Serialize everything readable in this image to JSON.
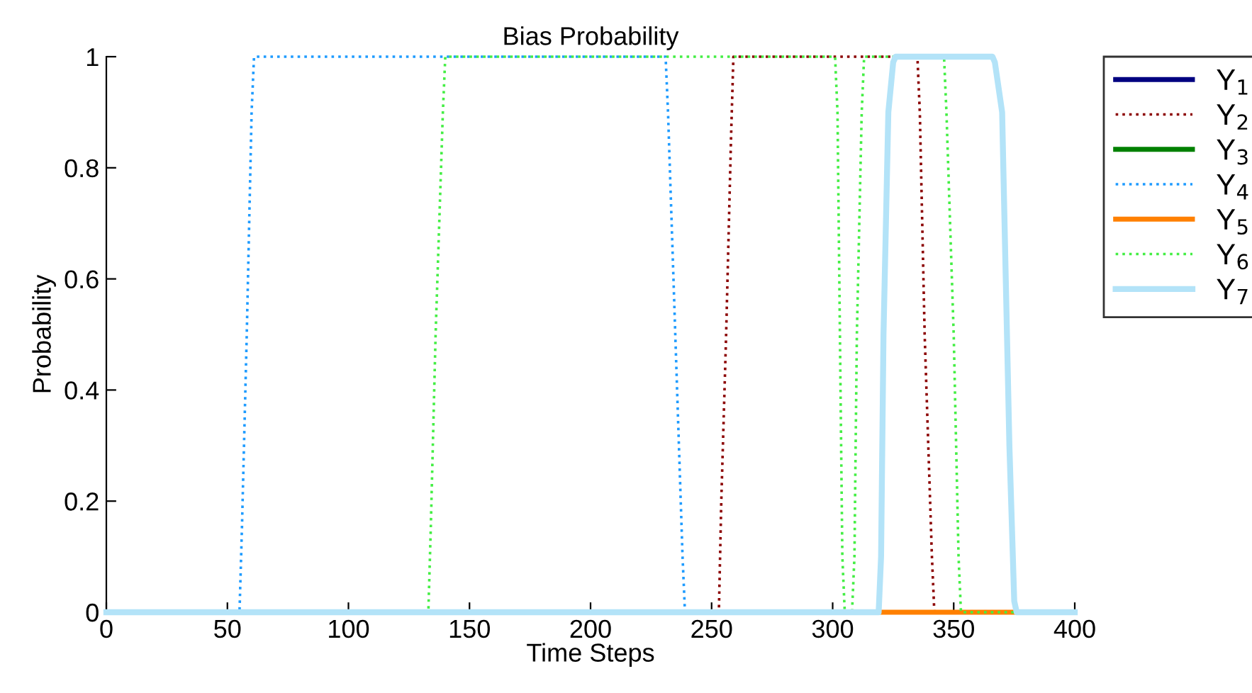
{
  "chart_data": {
    "type": "line",
    "title": "Bias Probability",
    "xlabel": "Time Steps",
    "ylabel": "Probability",
    "xlim": [
      0,
      400
    ],
    "xticks": [
      0,
      50,
      100,
      150,
      200,
      250,
      300,
      350,
      400
    ],
    "ylim": [
      0,
      1
    ],
    "yticks": [
      0,
      0.2,
      0.4,
      0.6,
      0.8,
      1
    ],
    "grid": false,
    "legend": "top right",
    "marker": "none",
    "series": [
      {
        "name": "Y$_{1}$",
        "color": "#000080",
        "line_style": "solid"
      },
      {
        "name": "Y$_{2}$",
        "color": "#8b0000",
        "line_style": "dotted",
        "x": [
          0,
          253,
          254,
          256,
          258,
          259,
          335,
          336,
          338,
          341,
          342,
          400
        ],
        "values": [
          0,
          0,
          0.2,
          0.5,
          0.85,
          1,
          1,
          0.9,
          0.5,
          0.1,
          0,
          0
        ]
      },
      {
        "name": "Y$_{3}$",
        "color": "#008000",
        "line_style": "solid"
      },
      {
        "name": "Y$_{4}$",
        "color": "#1e9bff",
        "line_style": "dotted",
        "x": [
          0,
          55,
          56,
          58,
          60,
          61,
          231,
          232,
          235,
          238,
          239,
          400
        ],
        "values": [
          0,
          0,
          0.15,
          0.5,
          0.9,
          1,
          1,
          0.9,
          0.5,
          0.1,
          0,
          0
        ]
      },
      {
        "name": "Y$_{5}$",
        "color": "#ff8000",
        "line_style": "solid",
        "x": [
          320,
          376
        ],
        "values": [
          0,
          0
        ]
      },
      {
        "name": "Y$_{6}$",
        "color": "#44ee44",
        "line_style": "dotted",
        "x": [
          0,
          133,
          134,
          136,
          139,
          140,
          301,
          302,
          303,
          304,
          305,
          308,
          309,
          310,
          312,
          313,
          346,
          347,
          350,
          352,
          353,
          400
        ],
        "values": [
          0,
          0,
          0.15,
          0.5,
          0.9,
          1,
          1,
          0.9,
          0.5,
          0.1,
          0,
          0,
          0.1,
          0.5,
          0.9,
          1,
          1,
          0.9,
          0.5,
          0.1,
          0,
          0
        ]
      },
      {
        "name": "Y$_{7}$",
        "color": "#b3e3f8",
        "line_style": "solid",
        "x": [
          0,
          319,
          320,
          321,
          323,
          325,
          326,
          366,
          367,
          370,
          373,
          375,
          376,
          400
        ],
        "values": [
          0,
          0,
          0.1,
          0.5,
          0.9,
          0.99,
          1,
          1,
          0.99,
          0.9,
          0.3,
          0.02,
          0,
          0
        ]
      }
    ]
  }
}
